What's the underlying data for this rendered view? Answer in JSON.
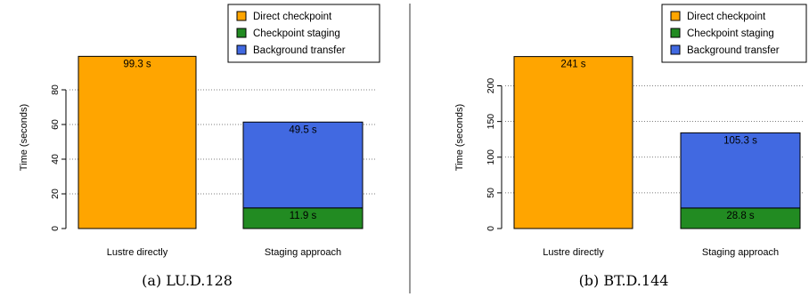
{
  "chart_data": [
    {
      "type": "bar",
      "stacked": true,
      "caption": "(a) LU.D.128",
      "ylabel": "Time (seconds)",
      "ylim": [
        0,
        100
      ],
      "yticks": [
        0,
        20,
        40,
        60,
        80
      ],
      "grid": "horizontal dotted",
      "legend_position": "top-right",
      "categories": [
        "Lustre directly",
        "Staging approach"
      ],
      "series": [
        {
          "name": "Direct checkpoint",
          "color": "#FFA500",
          "values": [
            99.3,
            0
          ]
        },
        {
          "name": "Checkpoint staging",
          "color": "#228B22",
          "values": [
            0,
            11.9
          ]
        },
        {
          "name": "Background transfer",
          "color": "#4169E1",
          "values": [
            0,
            49.5
          ]
        }
      ],
      "labels": [
        {
          "category": 0,
          "series": 0,
          "text": "99.3 s"
        },
        {
          "category": 1,
          "series": 1,
          "text": "11.9 s"
        },
        {
          "category": 1,
          "series": 2,
          "text": "49.5 s"
        }
      ]
    },
    {
      "type": "bar",
      "stacked": true,
      "caption": "(b) BT.D.144",
      "ylabel": "Time (seconds)",
      "ylim": [
        0,
        243
      ],
      "yticks": [
        0,
        50,
        100,
        150,
        200
      ],
      "grid": "horizontal dotted",
      "legend_position": "top-right",
      "categories": [
        "Lustre directly",
        "Staging approach"
      ],
      "series": [
        {
          "name": "Direct checkpoint",
          "color": "#FFA500",
          "values": [
            241,
            0
          ]
        },
        {
          "name": "Checkpoint staging",
          "color": "#228B22",
          "values": [
            0,
            28.8
          ]
        },
        {
          "name": "Background transfer",
          "color": "#4169E1",
          "values": [
            0,
            105.3
          ]
        }
      ],
      "labels": [
        {
          "category": 0,
          "series": 0,
          "text": "241 s"
        },
        {
          "category": 1,
          "series": 1,
          "text": "28.8 s"
        },
        {
          "category": 1,
          "series": 2,
          "text": "105.3 s"
        }
      ]
    }
  ]
}
